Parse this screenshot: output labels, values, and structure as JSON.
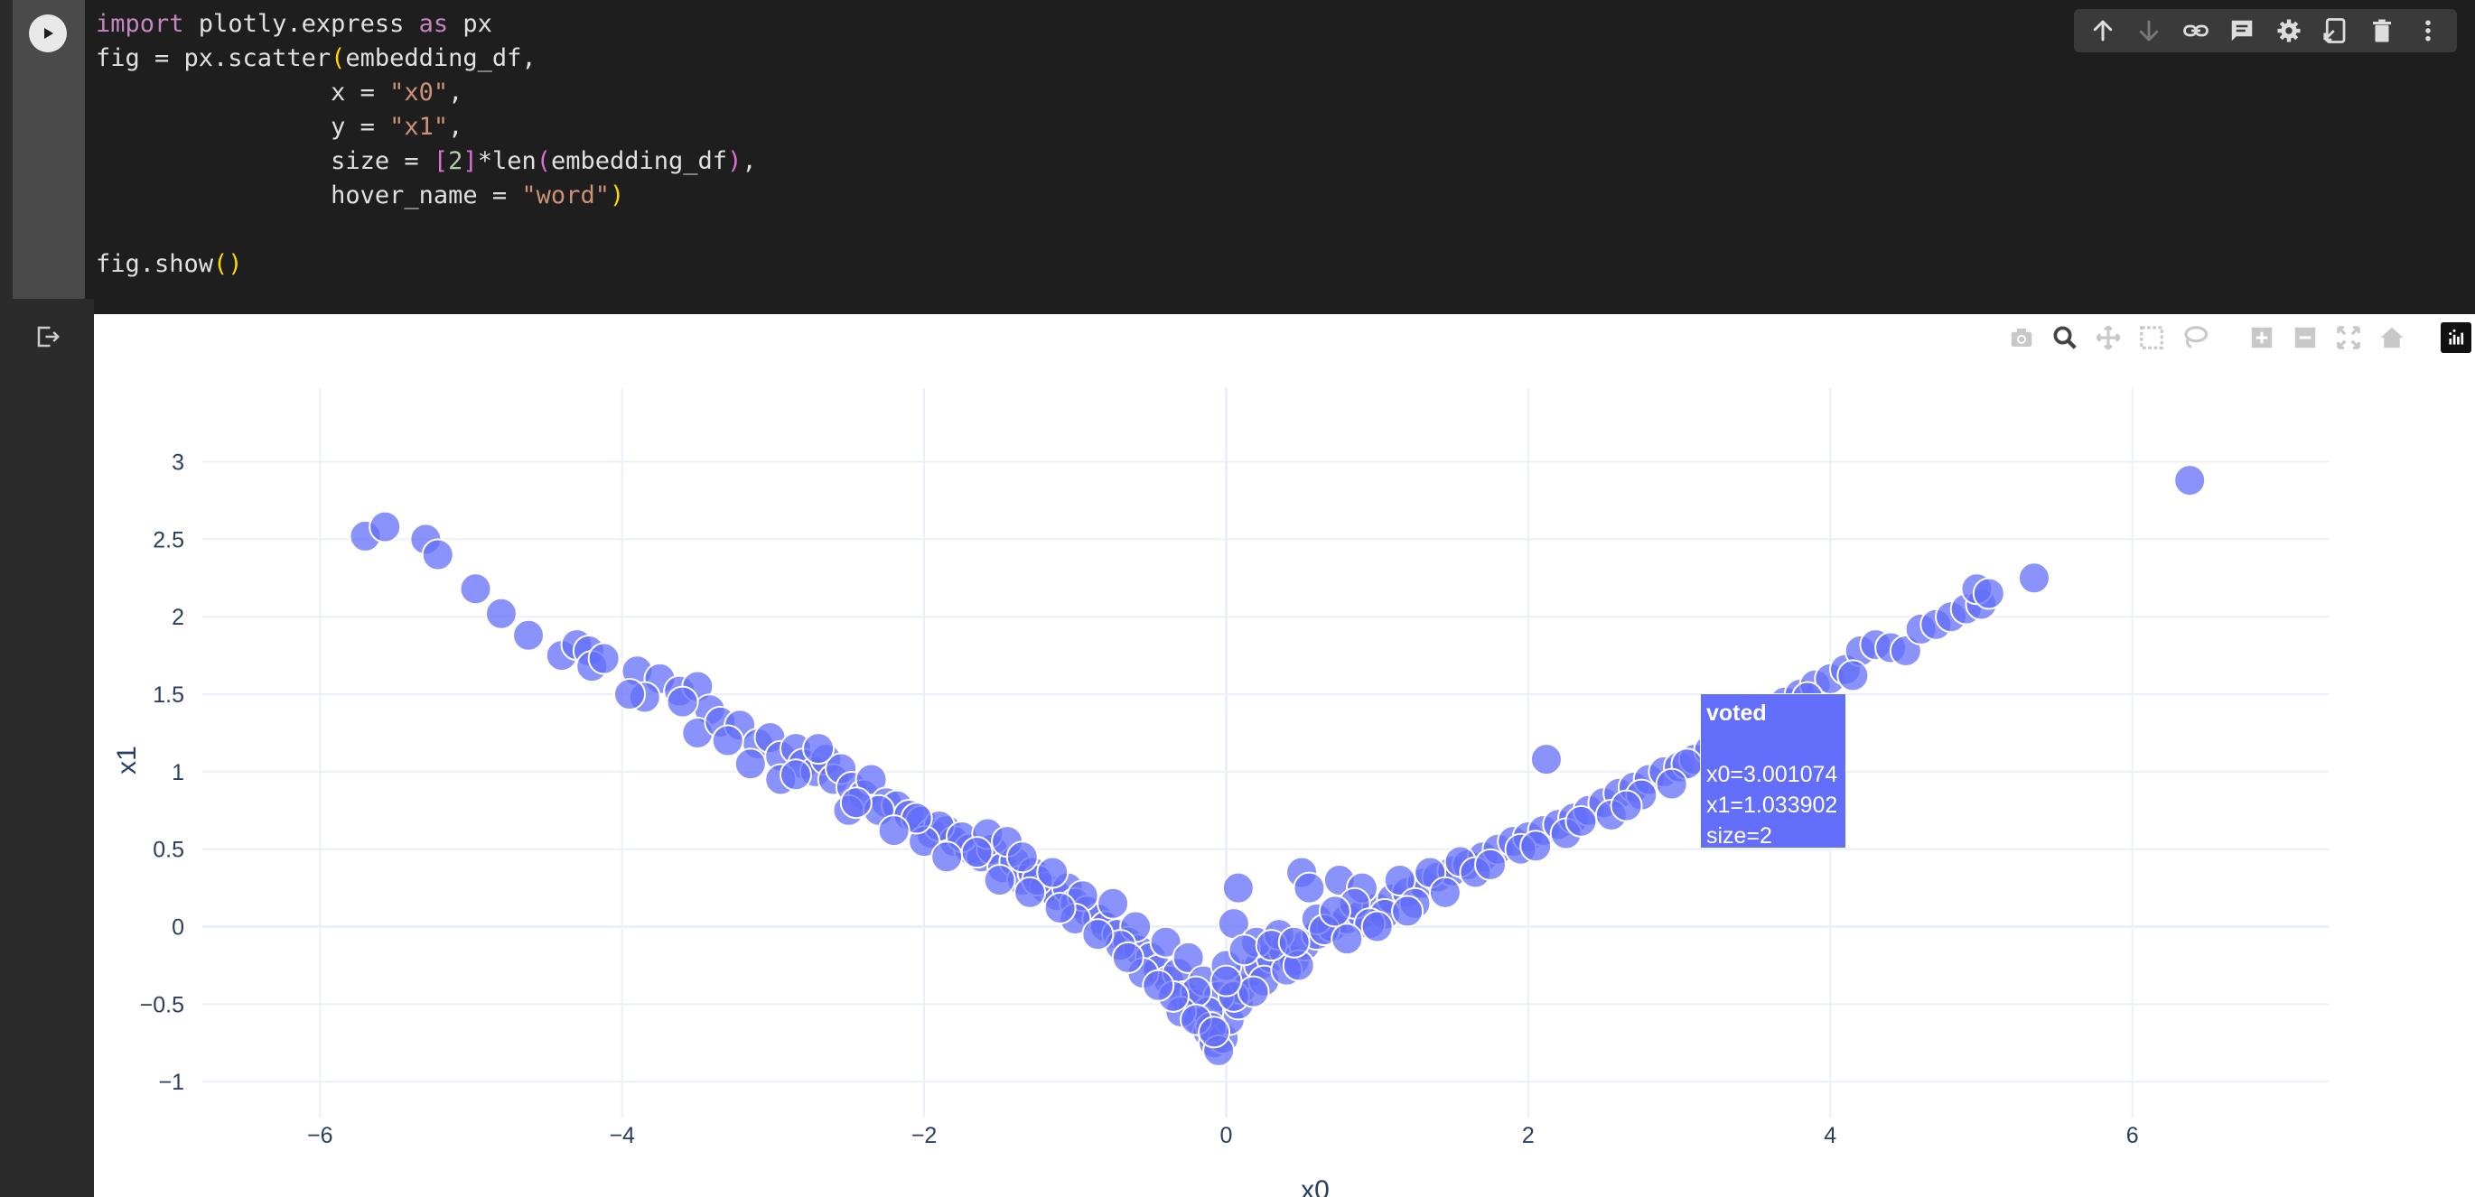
{
  "code_cell": {
    "lines": {
      "l1_kw1": "import",
      "l1_mid": " plotly.express ",
      "l1_kw2": "as",
      "l1_end": " px",
      "l2_a": "fig = px.scatter",
      "l2_p": "(",
      "l2_b": "embedding_df,",
      "l3_a": "x = ",
      "l3_s": "\"x0\"",
      "l3_b": ",",
      "l4_a": "y = ",
      "l4_s": "\"x1\"",
      "l4_b": ",",
      "l5_a": "size = ",
      "l5_lb": "[",
      "l5_n": "2",
      "l5_rb": "]",
      "l5_b": "*len",
      "l5_p1": "(",
      "l5_c": "embedding_df",
      "l5_p2": ")",
      "l5_d": ",",
      "l6_a": "hover_name = ",
      "l6_s": "\"word\"",
      "l6_p": ")",
      "l8_a": "fig.show",
      "l8_p": "()"
    }
  },
  "cell_toolbar": [
    "arrow-up-icon",
    "arrow-down-icon",
    "link-icon",
    "comment-icon",
    "gear-icon",
    "mirror-cell-icon",
    "trash-icon",
    "more-vert-icon"
  ],
  "colors": {
    "marker": "#636efa",
    "marker_line": "#ffffff",
    "grid": "#ebf0f8",
    "zeroline": "#ebf0f8",
    "tick_text": "#2a3f5f"
  },
  "chart_data": {
    "type": "scatter",
    "xlabel": "x0",
    "ylabel": "x1",
    "xlim": [
      -6.6,
      7.3
    ],
    "ylim": [
      -1.15,
      3.3
    ],
    "xticks": [
      -6,
      -4,
      -2,
      0,
      2,
      4,
      6
    ],
    "xtick_labels": [
      "−6",
      "−4",
      "−2",
      "0",
      "2",
      "4",
      "6"
    ],
    "yticks": [
      -1,
      -0.5,
      0,
      0.5,
      1,
      1.5,
      2,
      2.5,
      3
    ],
    "ytick_labels": [
      "−1",
      "−0.5",
      "0",
      "0.5",
      "1",
      "1.5",
      "2",
      "2.5",
      "3"
    ],
    "grid": true,
    "marker_size": 2,
    "points": [
      [
        -5.7,
        2.52
      ],
      [
        -5.57,
        2.58
      ],
      [
        -5.3,
        2.5
      ],
      [
        -5.22,
        2.4
      ],
      [
        -4.97,
        2.18
      ],
      [
        -4.8,
        2.02
      ],
      [
        -4.62,
        1.88
      ],
      [
        -4.4,
        1.75
      ],
      [
        -4.3,
        1.82
      ],
      [
        -4.22,
        1.78
      ],
      [
        -4.2,
        1.68
      ],
      [
        -4.12,
        1.73
      ],
      [
        -3.9,
        1.65
      ],
      [
        -3.75,
        1.6
      ],
      [
        -3.85,
        1.48
      ],
      [
        -3.62,
        1.52
      ],
      [
        -3.5,
        1.55
      ],
      [
        -3.42,
        1.4
      ],
      [
        -3.5,
        1.25
      ],
      [
        -3.35,
        1.32
      ],
      [
        -3.22,
        1.3
      ],
      [
        -3.1,
        1.18
      ],
      [
        -3.02,
        1.22
      ],
      [
        -2.95,
        1.1
      ],
      [
        -2.85,
        1.15
      ],
      [
        -2.8,
        1.05
      ],
      [
        -2.72,
        1.0
      ],
      [
        -2.65,
        1.08
      ],
      [
        -2.6,
        0.95
      ],
      [
        -2.55,
        1.02
      ],
      [
        -2.48,
        0.9
      ],
      [
        -2.4,
        0.85
      ],
      [
        -2.35,
        0.95
      ],
      [
        -2.5,
        0.75
      ],
      [
        -2.25,
        0.8
      ],
      [
        -2.18,
        0.78
      ],
      [
        -2.1,
        0.72
      ],
      [
        -2.02,
        0.68
      ],
      [
        -1.95,
        0.6
      ],
      [
        -1.85,
        0.62
      ],
      [
        -1.8,
        0.55
      ],
      [
        -1.7,
        0.5
      ],
      [
        -1.62,
        0.45
      ],
      [
        -1.55,
        0.5
      ],
      [
        -1.48,
        0.38
      ],
      [
        -1.4,
        0.42
      ],
      [
        -1.35,
        0.3
      ],
      [
        -1.28,
        0.35
      ],
      [
        -1.2,
        0.25
      ],
      [
        -1.12,
        0.2
      ],
      [
        -1.05,
        0.25
      ],
      [
        -1.0,
        0.15
      ],
      [
        -0.92,
        0.1
      ],
      [
        -0.85,
        0.05
      ],
      [
        -0.8,
        0.0
      ],
      [
        -0.72,
        -0.05
      ],
      [
        -0.65,
        -0.1
      ],
      [
        -0.58,
        -0.15
      ],
      [
        -0.5,
        -0.2
      ],
      [
        -0.45,
        -0.28
      ],
      [
        -0.38,
        -0.35
      ],
      [
        -0.32,
        -0.3
      ],
      [
        -0.28,
        -0.45
      ],
      [
        -0.22,
        -0.5
      ],
      [
        -0.18,
        -0.6
      ],
      [
        -0.12,
        -0.68
      ],
      [
        -0.08,
        -0.75
      ],
      [
        -0.02,
        -0.72
      ],
      [
        0.02,
        -0.6
      ],
      [
        0.08,
        -0.5
      ],
      [
        0.1,
        -0.4
      ],
      [
        0.15,
        -0.3
      ],
      [
        0.22,
        -0.25
      ],
      [
        0.3,
        -0.2
      ],
      [
        0.38,
        -0.15
      ],
      [
        0.45,
        -0.22
      ],
      [
        0.52,
        -0.12
      ],
      [
        0.6,
        -0.05
      ],
      [
        0.7,
        0.0
      ],
      [
        0.8,
        0.05
      ],
      [
        0.9,
        0.08
      ],
      [
        1.0,
        0.12
      ],
      [
        1.1,
        0.18
      ],
      [
        1.2,
        0.22
      ],
      [
        1.3,
        0.28
      ],
      [
        1.4,
        0.32
      ],
      [
        1.5,
        0.36
      ],
      [
        1.6,
        0.4
      ],
      [
        1.7,
        0.45
      ],
      [
        1.8,
        0.5
      ],
      [
        1.9,
        0.55
      ],
      [
        2.0,
        0.58
      ],
      [
        2.1,
        0.62
      ],
      [
        2.2,
        0.66
      ],
      [
        2.3,
        0.7
      ],
      [
        2.4,
        0.75
      ],
      [
        2.5,
        0.8
      ],
      [
        2.6,
        0.86
      ],
      [
        2.7,
        0.9
      ],
      [
        2.8,
        0.95
      ],
      [
        2.9,
        1.0
      ],
      [
        3.0,
        1.03
      ],
      [
        3.1,
        1.08
      ],
      [
        3.2,
        1.14
      ],
      [
        3.3,
        1.2
      ],
      [
        3.4,
        1.26
      ],
      [
        3.5,
        1.32
      ],
      [
        3.6,
        1.38
      ],
      [
        3.7,
        1.45
      ],
      [
        3.8,
        1.5
      ],
      [
        3.9,
        1.56
      ],
      [
        4.0,
        1.6
      ],
      [
        4.1,
        1.66
      ],
      [
        4.2,
        1.78
      ],
      [
        4.3,
        1.82
      ],
      [
        4.4,
        1.8
      ],
      [
        4.5,
        1.78
      ],
      [
        4.6,
        1.92
      ],
      [
        4.7,
        1.95
      ],
      [
        4.8,
        2.0
      ],
      [
        4.9,
        2.05
      ],
      [
        5.0,
        2.08
      ],
      [
        4.97,
        2.18
      ],
      [
        5.05,
        2.15
      ],
      [
        5.35,
        2.25
      ],
      [
        6.38,
        2.88
      ],
      [
        2.12,
        1.08
      ],
      [
        0.08,
        0.25
      ],
      [
        0.5,
        0.35
      ],
      [
        0.75,
        0.3
      ],
      [
        0.55,
        0.25
      ],
      [
        0.05,
        0.02
      ],
      [
        0.9,
        0.25
      ],
      [
        -2.3,
        0.75
      ],
      [
        -1.9,
        0.65
      ],
      [
        -1.75,
        0.58
      ],
      [
        -1.58,
        0.6
      ],
      [
        -1.45,
        0.55
      ],
      [
        -1.25,
        0.3
      ],
      [
        -1.15,
        0.35
      ],
      [
        -0.95,
        0.2
      ],
      [
        -0.75,
        0.15
      ],
      [
        -0.6,
        0.0
      ],
      [
        -0.4,
        -0.1
      ],
      [
        -0.25,
        -0.2
      ],
      [
        -0.15,
        -0.35
      ],
      [
        -0.05,
        -0.45
      ],
      [
        -0.12,
        -0.55
      ],
      [
        -0.2,
        -0.42
      ],
      [
        0.0,
        -0.25
      ],
      [
        0.2,
        -0.1
      ],
      [
        0.35,
        -0.05
      ],
      [
        0.6,
        0.05
      ],
      [
        0.85,
        0.15
      ],
      [
        1.15,
        0.3
      ],
      [
        1.35,
        0.35
      ],
      [
        1.55,
        0.42
      ],
      [
        -2.95,
        0.95
      ],
      [
        -2.7,
        1.15
      ],
      [
        -2.0,
        0.55
      ],
      [
        -1.0,
        0.05
      ],
      [
        -0.55,
        -0.3
      ],
      [
        -0.3,
        -0.55
      ],
      [
        -0.1,
        -0.65
      ],
      [
        -0.05,
        -0.8
      ],
      [
        0.05,
        -0.45
      ],
      [
        0.25,
        -0.35
      ],
      [
        1.05,
        0.08
      ],
      [
        1.25,
        0.15
      ],
      [
        1.65,
        0.35
      ],
      [
        1.95,
        0.5
      ],
      [
        2.25,
        0.6
      ],
      [
        2.55,
        0.72
      ],
      [
        2.75,
        0.85
      ],
      [
        3.05,
        1.05
      ],
      [
        -3.15,
        1.05
      ],
      [
        -2.85,
        0.98
      ],
      [
        -2.45,
        0.8
      ],
      [
        -2.05,
        0.7
      ],
      [
        -1.65,
        0.48
      ],
      [
        -1.3,
        0.22
      ],
      [
        -0.7,
        -0.12
      ],
      [
        -0.35,
        -0.45
      ],
      [
        0.12,
        -0.15
      ],
      [
        0.4,
        -0.28
      ],
      [
        0.65,
        -0.02
      ],
      [
        0.95,
        0.02
      ],
      [
        1.45,
        0.22
      ],
      [
        1.75,
        0.4
      ],
      [
        2.05,
        0.52
      ],
      [
        2.35,
        0.68
      ],
      [
        2.65,
        0.78
      ],
      [
        2.95,
        0.92
      ],
      [
        3.25,
        1.12
      ],
      [
        3.55,
        1.28
      ],
      [
        3.85,
        1.48
      ],
      [
        4.15,
        1.62
      ],
      [
        -1.85,
        0.45
      ],
      [
        -1.5,
        0.3
      ],
      [
        -1.1,
        0.12
      ],
      [
        -0.85,
        -0.05
      ],
      [
        -0.45,
        -0.38
      ],
      [
        -0.2,
        -0.6
      ],
      [
        -0.08,
        -0.68
      ],
      [
        0.18,
        -0.42
      ],
      [
        0.3,
        -0.12
      ],
      [
        0.48,
        -0.25
      ],
      [
        0.72,
        0.1
      ],
      [
        1.0,
        0.0
      ],
      [
        1.2,
        0.1
      ],
      [
        -3.3,
        1.2
      ],
      [
        -3.6,
        1.45
      ],
      [
        -3.95,
        1.5
      ],
      [
        -2.2,
        0.62
      ],
      [
        -1.35,
        0.45
      ],
      [
        -0.65,
        -0.2
      ],
      [
        0.0,
        -0.35
      ],
      [
        0.45,
        -0.1
      ],
      [
        0.8,
        -0.08
      ]
    ]
  },
  "tooltip": {
    "title": "voted",
    "line_x0": "x0=3.001074",
    "line_x1": "x1=1.033902",
    "line_size": "size=2"
  },
  "modebar": [
    "camera-icon",
    "zoom-icon",
    "pan-icon",
    "box-select-icon",
    "lasso-icon",
    "zoom-in-icon",
    "zoom-out-icon",
    "autoscale-icon",
    "reset-axes-icon",
    "plotly-logo-icon"
  ]
}
